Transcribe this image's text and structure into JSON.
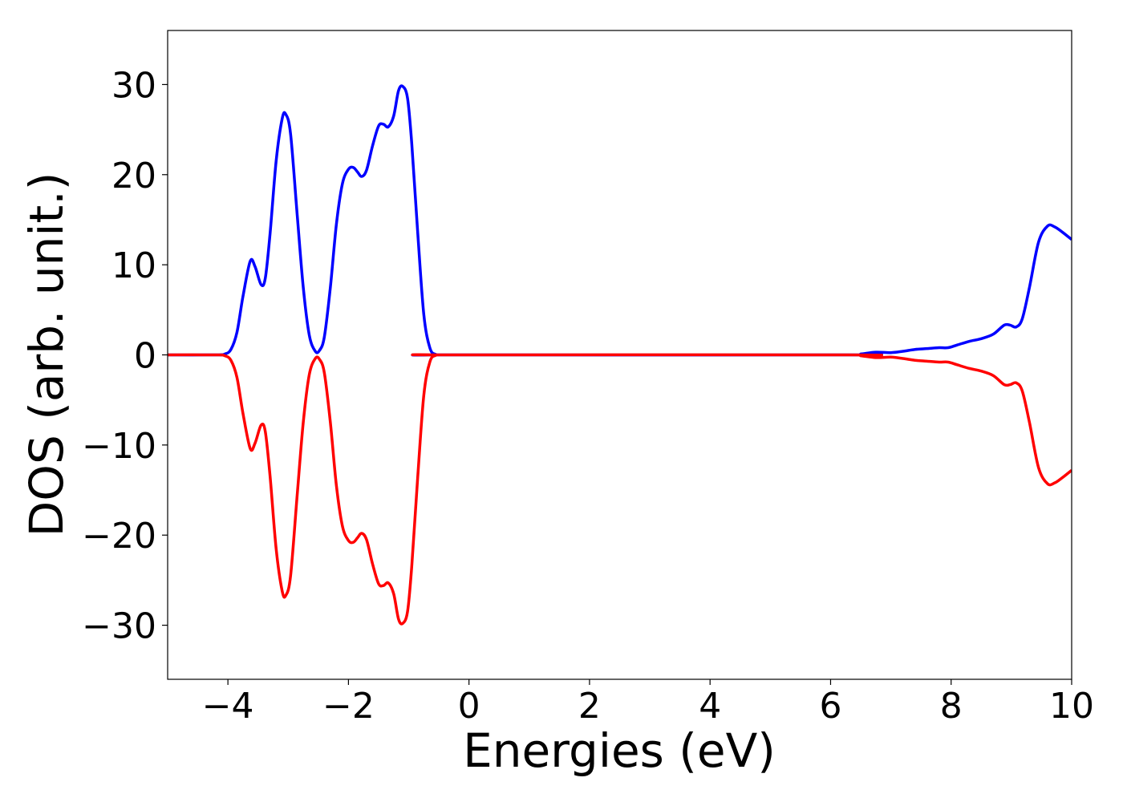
{
  "chart_data": {
    "type": "line",
    "title": "",
    "xlabel": "Energies (eV)",
    "ylabel": "DOS (arb. unit.)",
    "xlim": [
      -5,
      10
    ],
    "ylim": [
      -36,
      36
    ],
    "x_ticks": [
      -4,
      -2,
      0,
      2,
      4,
      6,
      8,
      10
    ],
    "x_tick_labels": [
      "−4",
      "−2",
      "0",
      "2",
      "4",
      "6",
      "8",
      "10"
    ],
    "y_ticks": [
      -30,
      -20,
      -10,
      0,
      10,
      20,
      30
    ],
    "y_tick_labels": [
      "−30",
      "−20",
      "−10",
      "0",
      "10",
      "20",
      "30"
    ],
    "grid": false,
    "legend": "none",
    "series": [
      {
        "color": "#0000ff",
        "points": [
          [
            -5.0,
            0
          ],
          [
            -4.2,
            0
          ],
          [
            -4.05,
            0.1
          ],
          [
            -3.95,
            0.6
          ],
          [
            -3.85,
            2.5
          ],
          [
            -3.75,
            6.5
          ],
          [
            -3.63,
            10.4
          ],
          [
            -3.55,
            9.8
          ],
          [
            -3.45,
            7.8
          ],
          [
            -3.38,
            8.5
          ],
          [
            -3.3,
            13.5
          ],
          [
            -3.2,
            21.5
          ],
          [
            -3.1,
            26.2
          ],
          [
            -3.04,
            26.7
          ],
          [
            -2.96,
            24.5
          ],
          [
            -2.85,
            15.5
          ],
          [
            -2.75,
            7.5
          ],
          [
            -2.65,
            2.2
          ],
          [
            -2.55,
            0.4
          ],
          [
            -2.48,
            0.5
          ],
          [
            -2.4,
            2.0
          ],
          [
            -2.3,
            7.5
          ],
          [
            -2.2,
            14.5
          ],
          [
            -2.1,
            19.0
          ],
          [
            -2.0,
            20.6
          ],
          [
            -1.92,
            20.8
          ],
          [
            -1.85,
            20.3
          ],
          [
            -1.78,
            19.8
          ],
          [
            -1.7,
            20.5
          ],
          [
            -1.6,
            23.2
          ],
          [
            -1.5,
            25.4
          ],
          [
            -1.42,
            25.6
          ],
          [
            -1.34,
            25.3
          ],
          [
            -1.25,
            26.5
          ],
          [
            -1.17,
            29.3
          ],
          [
            -1.1,
            29.8
          ],
          [
            -1.02,
            28.5
          ],
          [
            -0.95,
            23.5
          ],
          [
            -0.85,
            13.5
          ],
          [
            -0.75,
            4.5
          ],
          [
            -0.65,
            0.8
          ],
          [
            -0.55,
            0.05
          ],
          [
            -0.4,
            0
          ],
          [
            6.3,
            0
          ],
          [
            6.5,
            0.1
          ],
          [
            6.75,
            0.3
          ],
          [
            7.0,
            0.25
          ],
          [
            7.2,
            0.4
          ],
          [
            7.4,
            0.6
          ],
          [
            7.6,
            0.7
          ],
          [
            7.8,
            0.8
          ],
          [
            7.95,
            0.8
          ],
          [
            8.1,
            1.1
          ],
          [
            8.3,
            1.5
          ],
          [
            8.5,
            1.8
          ],
          [
            8.7,
            2.3
          ],
          [
            8.88,
            3.3
          ],
          [
            8.98,
            3.3
          ],
          [
            9.08,
            3.1
          ],
          [
            9.18,
            4.0
          ],
          [
            9.3,
            7.5
          ],
          [
            9.45,
            12.5
          ],
          [
            9.6,
            14.3
          ],
          [
            9.72,
            14.2
          ],
          [
            9.85,
            13.6
          ],
          [
            10.0,
            12.8
          ]
        ]
      },
      {
        "color": "#ff0000",
        "points": [
          [
            -5.0,
            0
          ],
          [
            -4.2,
            0
          ],
          [
            -4.05,
            -0.1
          ],
          [
            -3.95,
            -0.6
          ],
          [
            -3.85,
            -2.5
          ],
          [
            -3.75,
            -6.5
          ],
          [
            -3.63,
            -10.4
          ],
          [
            -3.55,
            -9.8
          ],
          [
            -3.45,
            -7.8
          ],
          [
            -3.38,
            -8.5
          ],
          [
            -3.3,
            -13.5
          ],
          [
            -3.2,
            -21.5
          ],
          [
            -3.1,
            -26.2
          ],
          [
            -3.04,
            -26.7
          ],
          [
            -2.96,
            -24.5
          ],
          [
            -2.85,
            -15.5
          ],
          [
            -2.75,
            -7.5
          ],
          [
            -2.65,
            -2.2
          ],
          [
            -2.55,
            -0.4
          ],
          [
            -2.48,
            -0.5
          ],
          [
            -2.4,
            -2.0
          ],
          [
            -2.3,
            -7.5
          ],
          [
            -2.2,
            -14.5
          ],
          [
            -2.1,
            -19.0
          ],
          [
            -2.0,
            -20.6
          ],
          [
            -1.92,
            -20.8
          ],
          [
            -1.85,
            -20.3
          ],
          [
            -1.78,
            -19.8
          ],
          [
            -1.7,
            -20.5
          ],
          [
            -1.6,
            -23.2
          ],
          [
            -1.5,
            -25.4
          ],
          [
            -1.42,
            -25.6
          ],
          [
            -1.34,
            -25.3
          ],
          [
            -1.25,
            -26.5
          ],
          [
            -1.17,
            -29.3
          ],
          [
            -1.1,
            -29.8
          ],
          [
            -1.02,
            -28.5
          ],
          [
            -0.95,
            -23.5
          ],
          [
            -0.85,
            -13.5
          ],
          [
            -0.75,
            -4.5
          ],
          [
            -0.65,
            -0.8
          ],
          [
            -0.55,
            -0.05
          ],
          [
            -0.4,
            0
          ],
          [
            6.3,
            0
          ],
          [
            6.5,
            -0.1
          ],
          [
            6.75,
            -0.3
          ],
          [
            7.0,
            -0.25
          ],
          [
            7.2,
            -0.4
          ],
          [
            7.4,
            -0.6
          ],
          [
            7.6,
            -0.7
          ],
          [
            7.8,
            -0.8
          ],
          [
            7.95,
            -0.8
          ],
          [
            8.1,
            -1.1
          ],
          [
            8.3,
            -1.5
          ],
          [
            8.5,
            -1.8
          ],
          [
            8.7,
            -2.3
          ],
          [
            8.88,
            -3.3
          ],
          [
            8.98,
            -3.3
          ],
          [
            9.08,
            -3.1
          ],
          [
            9.18,
            -4.0
          ],
          [
            9.3,
            -7.5
          ],
          [
            9.45,
            -12.5
          ],
          [
            9.6,
            -14.3
          ],
          [
            9.72,
            -14.2
          ],
          [
            9.85,
            -13.6
          ],
          [
            10.0,
            -12.8
          ]
        ]
      }
    ]
  }
}
